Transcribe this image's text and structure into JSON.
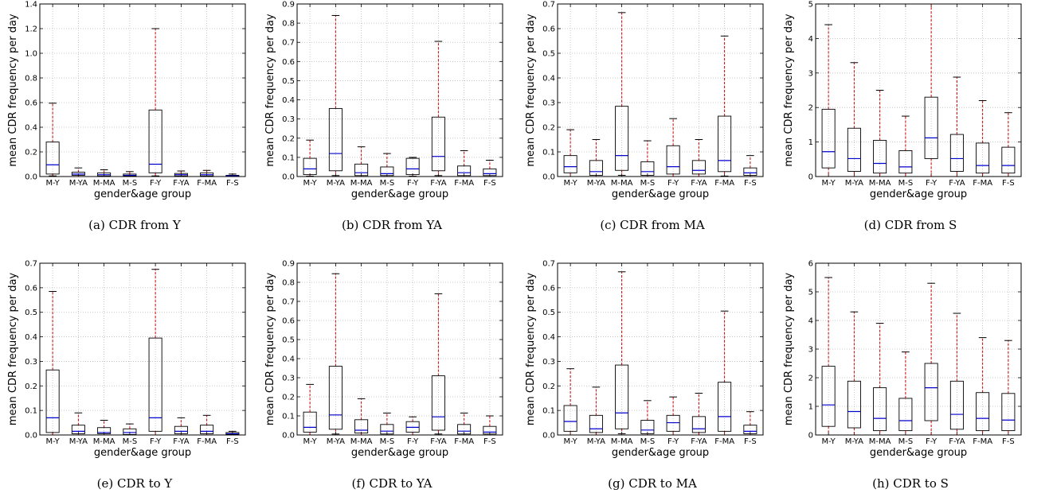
{
  "chart_data": [
    {
      "type": "boxplot",
      "caption": "(a) CDR from Y",
      "xlabel": "gender&age group",
      "ylabel": "mean CDR frequency per day",
      "categories": [
        "M-Y",
        "M-YA",
        "M-MA",
        "M-S",
        "F-Y",
        "F-YA",
        "F-MA",
        "F-S"
      ],
      "ylim": [
        0,
        1.4
      ],
      "yticks": [
        "0.0",
        "0.2",
        "0.4",
        "0.6",
        "0.8",
        "1.0",
        "1.2",
        "1.4"
      ],
      "boxes": [
        {
          "lw": 0.005,
          "q1": 0.02,
          "med": 0.095,
          "q3": 0.28,
          "uw": 0.595
        },
        {
          "lw": 0.0,
          "q1": 0.01,
          "med": 0.02,
          "q3": 0.035,
          "uw": 0.07
        },
        {
          "lw": 0.0,
          "q1": 0.005,
          "med": 0.015,
          "q3": 0.03,
          "uw": 0.055
        },
        {
          "lw": 0.0,
          "q1": 0.005,
          "med": 0.01,
          "q3": 0.02,
          "uw": 0.04
        },
        {
          "lw": 0.005,
          "q1": 0.03,
          "med": 0.1,
          "q3": 0.54,
          "uw": 1.2
        },
        {
          "lw": 0.0,
          "q1": 0.005,
          "med": 0.015,
          "q3": 0.025,
          "uw": 0.045
        },
        {
          "lw": 0.0,
          "q1": 0.005,
          "med": 0.015,
          "q3": 0.03,
          "uw": 0.05
        },
        {
          "lw": 0.0,
          "q1": 0.002,
          "med": 0.005,
          "q3": 0.01,
          "uw": 0.02
        }
      ]
    },
    {
      "type": "boxplot",
      "caption": "(b) CDR from YA",
      "xlabel": "gender&age group",
      "ylabel": "mean CDR frequency per day",
      "categories": [
        "M-Y",
        "M-YA",
        "M-MA",
        "M-S",
        "F-Y",
        "F-YA",
        "F-MA",
        "F-S"
      ],
      "ylim": [
        0,
        0.9
      ],
      "yticks": [
        "0.0",
        "0.1",
        "0.2",
        "0.3",
        "0.4",
        "0.5",
        "0.6",
        "0.7",
        "0.8",
        "0.9"
      ],
      "boxes": [
        {
          "lw": 0.002,
          "q1": 0.01,
          "med": 0.04,
          "q3": 0.095,
          "uw": 0.19
        },
        {
          "lw": 0.005,
          "q1": 0.03,
          "med": 0.12,
          "q3": 0.355,
          "uw": 0.84
        },
        {
          "lw": 0.0,
          "q1": 0.005,
          "med": 0.02,
          "q3": 0.065,
          "uw": 0.155
        },
        {
          "lw": 0.0,
          "q1": 0.005,
          "med": 0.015,
          "q3": 0.05,
          "uw": 0.12
        },
        {
          "lw": 0.002,
          "q1": 0.01,
          "med": 0.04,
          "q3": 0.095,
          "uw": 0.1
        },
        {
          "lw": 0.005,
          "q1": 0.03,
          "med": 0.105,
          "q3": 0.31,
          "uw": 0.705
        },
        {
          "lw": 0.0,
          "q1": 0.005,
          "med": 0.02,
          "q3": 0.055,
          "uw": 0.135
        },
        {
          "lw": 0.0,
          "q1": 0.005,
          "med": 0.015,
          "q3": 0.04,
          "uw": 0.085
        }
      ]
    },
    {
      "type": "boxplot",
      "caption": "(c) CDR from MA",
      "xlabel": "gender&age group",
      "ylabel": "mean CDR frequency per day",
      "categories": [
        "M-Y",
        "M-YA",
        "M-MA",
        "M-S",
        "F-Y",
        "F-YA",
        "F-MA",
        "F-S"
      ],
      "ylim": [
        0,
        0.7
      ],
      "yticks": [
        "0.0",
        "0.1",
        "0.2",
        "0.3",
        "0.4",
        "0.5",
        "0.6",
        "0.7"
      ],
      "boxes": [
        {
          "lw": 0.0,
          "q1": 0.015,
          "med": 0.04,
          "q3": 0.085,
          "uw": 0.19
        },
        {
          "lw": 0.0,
          "q1": 0.005,
          "med": 0.02,
          "q3": 0.065,
          "uw": 0.15
        },
        {
          "lw": 0.005,
          "q1": 0.025,
          "med": 0.085,
          "q3": 0.285,
          "uw": 0.665
        },
        {
          "lw": 0.0,
          "q1": 0.005,
          "med": 0.02,
          "q3": 0.06,
          "uw": 0.145
        },
        {
          "lw": 0.0,
          "q1": 0.01,
          "med": 0.04,
          "q3": 0.125,
          "uw": 0.235
        },
        {
          "lw": 0.0,
          "q1": 0.01,
          "med": 0.025,
          "q3": 0.065,
          "uw": 0.15
        },
        {
          "lw": 0.002,
          "q1": 0.02,
          "med": 0.065,
          "q3": 0.245,
          "uw": 0.57
        },
        {
          "lw": 0.0,
          "q1": 0.005,
          "med": 0.015,
          "q3": 0.035,
          "uw": 0.085
        }
      ]
    },
    {
      "type": "boxplot",
      "caption": "(d) CDR from S",
      "xlabel": "gender&age group",
      "ylabel": "mean CDR frequency per day",
      "categories": [
        "M-Y",
        "M-YA",
        "M-MA",
        "M-S",
        "F-Y",
        "F-YA",
        "F-MA",
        "F-S"
      ],
      "ylim": [
        0,
        5
      ],
      "yticks": [
        "0",
        "1",
        "2",
        "3",
        "4",
        "5"
      ],
      "boxes": [
        {
          "lw": 0.0,
          "q1": 0.25,
          "med": 0.72,
          "q3": 1.95,
          "uw": 4.4
        },
        {
          "lw": 0.0,
          "q1": 0.15,
          "med": 0.52,
          "q3": 1.4,
          "uw": 3.3
        },
        {
          "lw": 0.0,
          "q1": 0.1,
          "med": 0.38,
          "q3": 1.05,
          "uw": 2.5
        },
        {
          "lw": 0.0,
          "q1": 0.1,
          "med": 0.28,
          "q3": 0.75,
          "uw": 1.75
        },
        {
          "lw": 0.0,
          "q1": 0.52,
          "med": 1.12,
          "q3": 2.3,
          "uw": 5.0
        },
        {
          "lw": 0.0,
          "q1": 0.15,
          "med": 0.52,
          "q3": 1.22,
          "uw": 2.88
        },
        {
          "lw": 0.0,
          "q1": 0.1,
          "med": 0.32,
          "q3": 0.97,
          "uw": 2.2
        },
        {
          "lw": 0.0,
          "q1": 0.1,
          "med": 0.32,
          "q3": 0.85,
          "uw": 1.85
        }
      ]
    },
    {
      "type": "boxplot",
      "caption": "(e) CDR to Y",
      "xlabel": "gender&age group",
      "ylabel": "mean CDR frequency per day",
      "categories": [
        "M-Y",
        "M-YA",
        "M-MA",
        "M-S",
        "F-Y",
        "F-YA",
        "F-MA",
        "F-S"
      ],
      "ylim": [
        0,
        0.7
      ],
      "yticks": [
        "0.0",
        "0.1",
        "0.2",
        "0.3",
        "0.4",
        "0.5",
        "0.6",
        "0.7"
      ],
      "boxes": [
        {
          "lw": 0.0,
          "q1": 0.01,
          "med": 0.07,
          "q3": 0.265,
          "uw": 0.585
        },
        {
          "lw": 0.0,
          "q1": 0.005,
          "med": 0.015,
          "q3": 0.04,
          "uw": 0.09
        },
        {
          "lw": 0.0,
          "q1": 0.005,
          "med": 0.01,
          "q3": 0.03,
          "uw": 0.06
        },
        {
          "lw": 0.0,
          "q1": 0.002,
          "med": 0.01,
          "q3": 0.025,
          "uw": 0.045
        },
        {
          "lw": 0.0,
          "q1": 0.015,
          "med": 0.07,
          "q3": 0.395,
          "uw": 0.675
        },
        {
          "lw": 0.0,
          "q1": 0.005,
          "med": 0.015,
          "q3": 0.035,
          "uw": 0.07
        },
        {
          "lw": 0.0,
          "q1": 0.005,
          "med": 0.015,
          "q3": 0.04,
          "uw": 0.08
        },
        {
          "lw": 0.0,
          "q1": 0.002,
          "med": 0.005,
          "q3": 0.01,
          "uw": 0.015
        }
      ]
    },
    {
      "type": "boxplot",
      "caption": "(f) CDR to YA",
      "xlabel": "gender&age group",
      "ylabel": "mean CDR frequency per day",
      "categories": [
        "M-Y",
        "M-YA",
        "M-MA",
        "M-S",
        "F-Y",
        "F-YA",
        "F-MA",
        "F-S"
      ],
      "ylim": [
        0,
        0.9
      ],
      "yticks": [
        "0.0",
        "0.1",
        "0.2",
        "0.3",
        "0.4",
        "0.5",
        "0.6",
        "0.7",
        "0.8",
        "0.9"
      ],
      "boxes": [
        {
          "lw": 0.0,
          "q1": 0.015,
          "med": 0.04,
          "q3": 0.12,
          "uw": 0.265
        },
        {
          "lw": 0.005,
          "q1": 0.03,
          "med": 0.105,
          "q3": 0.36,
          "uw": 0.845
        },
        {
          "lw": 0.0,
          "q1": 0.01,
          "med": 0.025,
          "q3": 0.08,
          "uw": 0.19
        },
        {
          "lw": 0.0,
          "q1": 0.005,
          "med": 0.02,
          "q3": 0.055,
          "uw": 0.115
        },
        {
          "lw": 0.0,
          "q1": 0.015,
          "med": 0.04,
          "q3": 0.07,
          "uw": 0.095
        },
        {
          "lw": 0.005,
          "q1": 0.025,
          "med": 0.095,
          "q3": 0.31,
          "uw": 0.74
        },
        {
          "lw": 0.0,
          "q1": 0.005,
          "med": 0.02,
          "q3": 0.055,
          "uw": 0.115
        },
        {
          "lw": 0.0,
          "q1": 0.005,
          "med": 0.015,
          "q3": 0.045,
          "uw": 0.1
        }
      ]
    },
    {
      "type": "boxplot",
      "caption": "(g) CDR to MA",
      "xlabel": "gender&age group",
      "ylabel": "mean CDR frequency per day",
      "categories": [
        "M-Y",
        "M-YA",
        "M-MA",
        "M-S",
        "F-Y",
        "F-YA",
        "F-MA",
        "F-S"
      ],
      "ylim": [
        0,
        0.7
      ],
      "yticks": [
        "0.0",
        "0.1",
        "0.2",
        "0.3",
        "0.4",
        "0.5",
        "0.6",
        "0.7"
      ],
      "boxes": [
        {
          "lw": 0.0,
          "q1": 0.015,
          "med": 0.055,
          "q3": 0.12,
          "uw": 0.27
        },
        {
          "lw": 0.0,
          "q1": 0.01,
          "med": 0.025,
          "q3": 0.08,
          "uw": 0.195
        },
        {
          "lw": 0.005,
          "q1": 0.025,
          "med": 0.09,
          "q3": 0.285,
          "uw": 0.665
        },
        {
          "lw": 0.0,
          "q1": 0.005,
          "med": 0.02,
          "q3": 0.06,
          "uw": 0.14
        },
        {
          "lw": 0.0,
          "q1": 0.015,
          "med": 0.05,
          "q3": 0.08,
          "uw": 0.155
        },
        {
          "lw": 0.0,
          "q1": 0.01,
          "med": 0.025,
          "q3": 0.075,
          "uw": 0.17
        },
        {
          "lw": 0.0,
          "q1": 0.015,
          "med": 0.075,
          "q3": 0.215,
          "uw": 0.505
        },
        {
          "lw": 0.0,
          "q1": 0.005,
          "med": 0.015,
          "q3": 0.04,
          "uw": 0.095
        }
      ]
    },
    {
      "type": "boxplot",
      "caption": "(h) CDR to S",
      "xlabel": "gender&age group",
      "ylabel": "mean CDR frequency per day",
      "categories": [
        "M-Y",
        "M-YA",
        "M-MA",
        "M-S",
        "F-Y",
        "F-YA",
        "F-MA",
        "F-S"
      ],
      "ylim": [
        0,
        6
      ],
      "yticks": [
        "0",
        "1",
        "2",
        "3",
        "4",
        "5",
        "6"
      ],
      "boxes": [
        {
          "lw": 0.0,
          "q1": 0.3,
          "med": 1.05,
          "q3": 2.4,
          "uw": 5.5
        },
        {
          "lw": 0.0,
          "q1": 0.25,
          "med": 0.82,
          "q3": 1.88,
          "uw": 4.3
        },
        {
          "lw": 0.0,
          "q1": 0.15,
          "med": 0.58,
          "q3": 1.65,
          "uw": 3.9
        },
        {
          "lw": 0.0,
          "q1": 0.15,
          "med": 0.5,
          "q3": 1.28,
          "uw": 2.9
        },
        {
          "lw": 0.0,
          "q1": 0.5,
          "med": 1.65,
          "q3": 2.5,
          "uw": 5.3
        },
        {
          "lw": 0.0,
          "q1": 0.2,
          "med": 0.72,
          "q3": 1.88,
          "uw": 4.25
        },
        {
          "lw": 0.0,
          "q1": 0.15,
          "med": 0.58,
          "q3": 1.48,
          "uw": 3.4
        },
        {
          "lw": 0.0,
          "q1": 0.15,
          "med": 0.52,
          "q3": 1.45,
          "uw": 3.3
        }
      ]
    }
  ],
  "colors": {
    "box": "#000000",
    "median": "#0000cc",
    "whisker": "#cc0000",
    "cap": "#000000",
    "grid": "#bbbbbb"
  }
}
